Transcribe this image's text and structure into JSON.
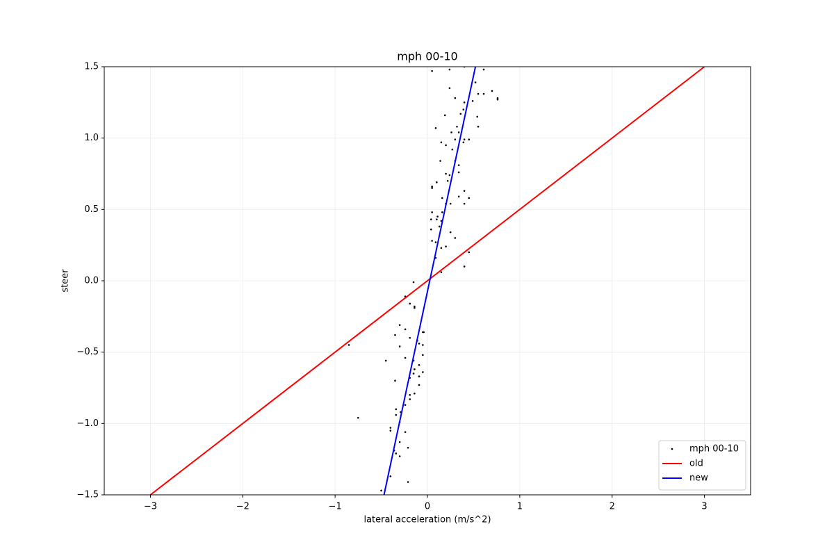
{
  "chart_data": {
    "type": "scatter",
    "title": "mph 00-10",
    "x_label": "lateral acceleration (m/s^2)",
    "y_label": "steer",
    "xlim": [
      -3.5,
      3.5
    ],
    "ylim": [
      -1.5,
      1.5
    ],
    "xticks": [
      {
        "value": -3,
        "label": "−3"
      },
      {
        "value": -2,
        "label": "−2"
      },
      {
        "value": -1,
        "label": "−1"
      },
      0,
      1,
      2,
      3
    ],
    "yticks": [
      {
        "value": -1.5,
        "label": "−1.5"
      },
      {
        "value": -1.0,
        "label": "−1.0"
      },
      {
        "value": -0.5,
        "label": "−0.5"
      },
      {
        "value": 0.0,
        "label": "0.0"
      },
      0.5,
      {
        "value": 1.0,
        "label": "1.0"
      },
      1.5
    ],
    "grid": true,
    "legend": "lower right",
    "series": [
      {
        "name": "mph 00-10",
        "type": "scatter",
        "color": "#000000",
        "x": [
          0.05,
          0.24,
          0.4,
          0.61,
          0.24,
          0.52,
          0.7,
          0.76,
          0.76,
          0.55,
          0.61,
          0.49,
          0.3,
          0.4,
          0.39,
          0.36,
          0.19,
          0.54,
          0.55,
          0.32,
          0.09,
          0.34,
          0.26,
          0.4,
          0.45,
          0.3,
          0.39,
          0.15,
          0.2,
          0.27,
          0.3,
          0.14,
          0.34,
          0.34,
          0.2,
          0.24,
          0.22,
          0.1,
          0.05,
          0.05,
          0.4,
          0.16,
          0.34,
          0.45,
          0.4,
          0.2,
          0.25,
          0.05,
          0.16,
          0.11,
          0.04,
          0.1,
          0.15,
          0.13,
          0.04,
          0.25,
          0.3,
          0.05,
          0.09,
          0.15,
          0.2,
          0.45,
          0.09,
          0.4,
          0.15,
          -0.15,
          -0.24,
          -0.19,
          -0.14,
          -0.14,
          -0.3,
          -0.24,
          -0.35,
          -0.04,
          -0.05,
          -0.19,
          -0.85,
          -0.11,
          -0.09,
          -0.05,
          -0.3,
          -0.05,
          -0.45,
          -0.24,
          -0.15,
          -0.09,
          -0.14,
          -0.05,
          -0.15,
          -0.19,
          -0.09,
          -0.35,
          -0.09,
          -0.14,
          -0.19,
          -0.19,
          -0.24,
          -0.34,
          -0.29,
          -0.34,
          -0.75,
          -0.3,
          -0.4,
          -0.4,
          -0.24,
          -0.3,
          -0.21,
          -0.36,
          -0.34,
          -0.3,
          -0.4,
          -0.21,
          -0.5
        ],
        "values": [
          1.47,
          1.48,
          1.5,
          1.48,
          1.35,
          1.39,
          1.33,
          1.28,
          1.27,
          1.31,
          1.31,
          1.26,
          1.28,
          1.25,
          1.2,
          1.17,
          1.16,
          1.15,
          1.08,
          1.08,
          1.07,
          1.04,
          1.04,
          0.99,
          0.99,
          0.99,
          0.97,
          0.97,
          0.95,
          0.92,
          0.84,
          0.84,
          0.81,
          0.76,
          0.75,
          0.74,
          0.7,
          0.69,
          0.66,
          0.65,
          0.63,
          0.58,
          0.59,
          0.58,
          0.54,
          0.54,
          0.54,
          0.48,
          0.48,
          0.45,
          0.43,
          0.43,
          0.42,
          0.38,
          0.36,
          0.34,
          0.3,
          0.28,
          0.27,
          0.23,
          0.24,
          0.2,
          0.16,
          0.1,
          0.06,
          -0.01,
          -0.11,
          -0.16,
          -0.18,
          -0.19,
          -0.31,
          -0.34,
          -0.38,
          -0.36,
          -0.36,
          -0.4,
          -0.45,
          -0.42,
          -0.44,
          -0.45,
          -0.46,
          -0.52,
          -0.56,
          -0.54,
          -0.56,
          -0.59,
          -0.62,
          -0.64,
          -0.65,
          -0.68,
          -0.67,
          -0.7,
          -0.73,
          -0.79,
          -0.8,
          -0.83,
          -0.87,
          -0.9,
          -0.92,
          -0.94,
          -0.96,
          -0.99,
          -1.03,
          -1.05,
          -1.06,
          -1.13,
          -1.17,
          -1.19,
          -1.21,
          -1.23,
          -1.37,
          -1.41,
          -1.47
        ]
      },
      {
        "name": "old",
        "type": "line",
        "color": "#ff0000",
        "x": [
          -3,
          3
        ],
        "values": [
          -1.5,
          1.5
        ]
      },
      {
        "name": "new",
        "type": "line",
        "color": "#0000ff",
        "x": [
          -0.47,
          0.52
        ],
        "values": [
          -1.5,
          1.5
        ]
      }
    ]
  }
}
